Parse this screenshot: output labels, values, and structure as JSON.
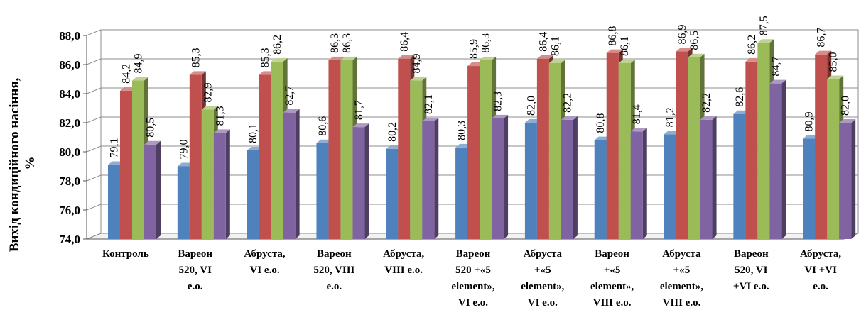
{
  "chart_data": {
    "type": "bar",
    "ylabel_line1": "Вихід кондиційного насіння,",
    "ylabel_line2": "%",
    "ylim": [
      74.0,
      88.0
    ],
    "ytick_step": 2.0,
    "yticks": [
      "74,0",
      "76,0",
      "78,0",
      "80,0",
      "82,0",
      "84,0",
      "86,0",
      "88,0"
    ],
    "grid": true,
    "categories": [
      [
        "Контроль"
      ],
      [
        "Вареон",
        "520, VI",
        "е.о."
      ],
      [
        "Абруста,",
        "VI е.о."
      ],
      [
        "Вареон",
        "520, VIII",
        "е.о."
      ],
      [
        "Абруста,",
        "VIII е.о."
      ],
      [
        "Вареон",
        "520 +«5",
        "element»,",
        "VI е.о."
      ],
      [
        "Абруста",
        "+«5",
        "element»,",
        "VI е.о."
      ],
      [
        "Вареон",
        "+«5",
        "element»,",
        "VIII е.о."
      ],
      [
        "Абруста",
        "+«5",
        "element»,",
        "VIII е.о."
      ],
      [
        "Вареон",
        "520, VI",
        "+VI е.о."
      ],
      [
        "Абруста,",
        "VI +VI",
        "е.о."
      ]
    ],
    "series": [
      {
        "color": "#4f81bd",
        "values": [
          79.1,
          79.0,
          80.1,
          80.6,
          80.2,
          80.3,
          82.0,
          80.8,
          81.2,
          82.6,
          80.9
        ],
        "labels": [
          "79,1",
          "79,0",
          "80,1",
          "80,6",
          "80,2",
          "80,3",
          "82,0",
          "80,8",
          "81,2",
          "82,6",
          "80,9"
        ]
      },
      {
        "color": "#c0504d",
        "values": [
          84.2,
          85.3,
          85.3,
          86.3,
          86.4,
          85.9,
          86.4,
          86.8,
          86.9,
          86.2,
          86.7
        ],
        "labels": [
          "84,2",
          "85,3",
          "85,3",
          "86,3",
          "86,4",
          "85,9",
          "86,4",
          "86,8",
          "86,9",
          "86,2",
          "86,7"
        ]
      },
      {
        "color": "#9bbb59",
        "values": [
          84.9,
          82.9,
          86.2,
          86.3,
          84.9,
          86.3,
          86.1,
          86.1,
          86.5,
          87.5,
          85.0
        ],
        "labels": [
          "84,9",
          "82,9",
          "86,2",
          "86,3",
          "84,9",
          "86,3",
          "86,1",
          "86,1",
          "86,5",
          "87,5",
          "85,0"
        ]
      },
      {
        "color": "#8064a2",
        "values": [
          80.5,
          81.3,
          82.7,
          81.7,
          82.1,
          82.3,
          82.2,
          81.4,
          82.2,
          84.7,
          82.0
        ],
        "labels": [
          "80,5",
          "81,3",
          "82,7",
          "81,7",
          "82,1",
          "82,3",
          "82,2",
          "81,4",
          "82,2",
          "84,7",
          "82,0"
        ]
      }
    ]
  }
}
